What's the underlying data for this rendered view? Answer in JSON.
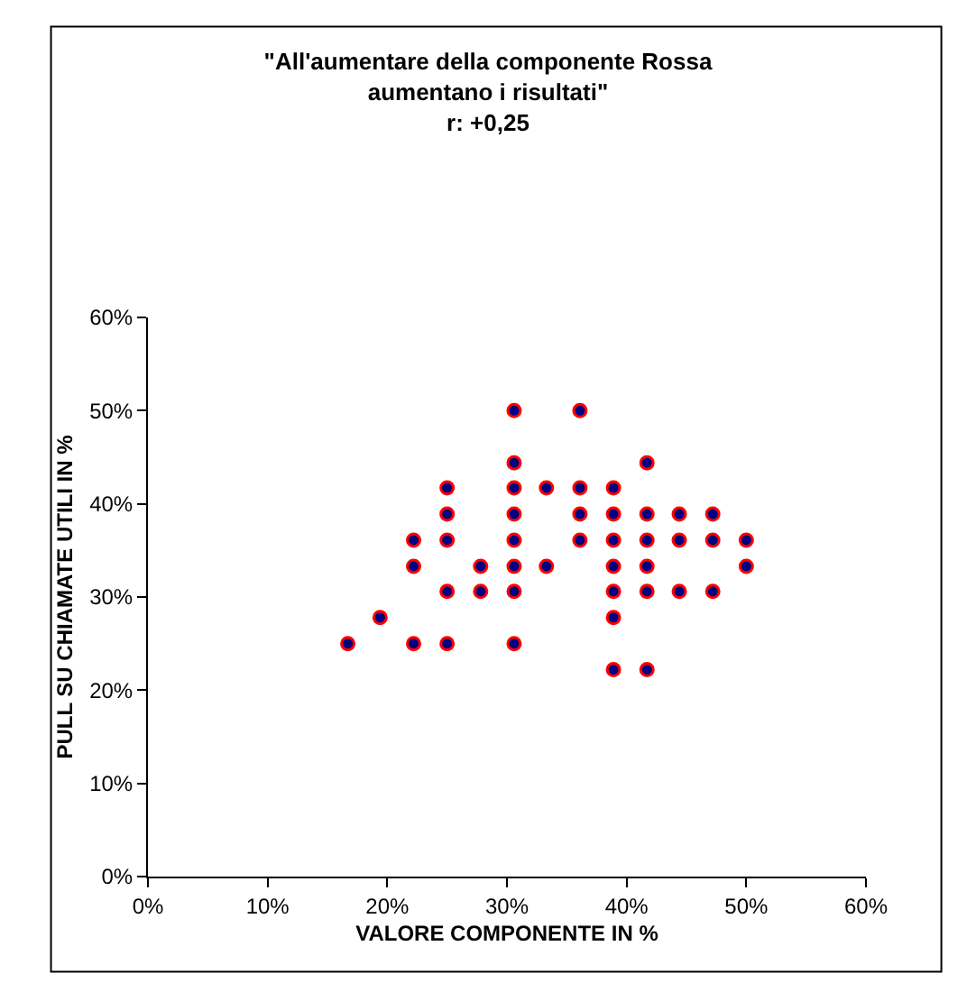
{
  "chart_data": {
    "type": "scatter",
    "title": "\"All'aumentare della componente Rossa\naumentano i risultati\"\nr: +0,25",
    "xlabel": "VALORE COMPONENTE IN %",
    "ylabel": "PULL SU CHIAMATE UTILI IN %",
    "series": [
      {
        "color": "#000080",
        "x": [
          16.7,
          19.4,
          22.2,
          22.2,
          22.2,
          25,
          25,
          25,
          25,
          25,
          27.8,
          27.8,
          30.6,
          30.6,
          30.6,
          30.6,
          30.6,
          30.6,
          30.6,
          30.6,
          33.3,
          33.3,
          36.1,
          36.1,
          36.1,
          36.1,
          38.9,
          38.9,
          38.9,
          38.9,
          38.9,
          38.9,
          38.9,
          41.7,
          41.7,
          41.7,
          41.7,
          41.7,
          41.7,
          44.4,
          44.4,
          44.4,
          47.2,
          47.2,
          47.2,
          50,
          50
        ],
        "values": [
          25,
          27.8,
          25,
          33.3,
          36.1,
          25,
          30.6,
          36.1,
          38.9,
          41.7,
          30.6,
          33.3,
          25,
          30.6,
          33.3,
          36.1,
          38.9,
          41.7,
          44.4,
          50,
          33.3,
          41.7,
          36.1,
          38.9,
          41.7,
          50,
          22.2,
          27.8,
          30.6,
          33.3,
          36.1,
          38.9,
          41.7,
          22.2,
          30.6,
          33.3,
          36.1,
          38.9,
          44.4,
          30.6,
          36.1,
          38.9,
          30.6,
          36.1,
          38.9,
          33.3,
          36.1
        ]
      }
    ],
    "xlim": [
      0,
      60
    ],
    "ylim": [
      0,
      60
    ],
    "xticks": [
      {
        "value": 0,
        "label": "0%"
      },
      {
        "value": 10,
        "label": "10%"
      },
      {
        "value": 20,
        "label": "20%"
      },
      {
        "value": 30,
        "label": "30%"
      },
      {
        "value": 40,
        "label": "40%"
      },
      {
        "value": 50,
        "label": "50%"
      },
      {
        "value": 60,
        "label": "60%"
      }
    ],
    "yticks": [
      {
        "value": 0,
        "label": "0%"
      },
      {
        "value": 10,
        "label": "10%"
      },
      {
        "value": 20,
        "label": "20%"
      },
      {
        "value": 30,
        "label": "30%"
      },
      {
        "value": 40,
        "label": "40%"
      },
      {
        "value": 50,
        "label": "50%"
      },
      {
        "value": 60,
        "label": "60%"
      }
    ],
    "marker": "circle",
    "grid": false,
    "legend": false
  }
}
